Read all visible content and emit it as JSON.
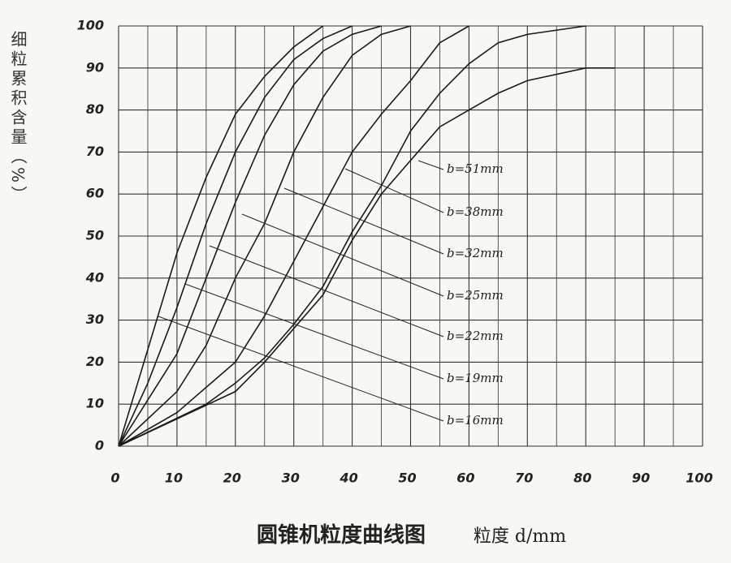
{
  "chart_data": {
    "type": "line",
    "title": "圆锥机粒度曲线图",
    "x_label": "粒度 d/mm",
    "y_label": "细粒累积含量（%）",
    "xlim": [
      0,
      100
    ],
    "xticks": [
      0,
      10,
      20,
      30,
      40,
      50,
      60,
      70,
      80,
      90,
      100
    ],
    "ylim": [
      0,
      100
    ],
    "yticks": [
      0,
      10,
      20,
      30,
      40,
      50,
      60,
      70,
      80,
      90,
      100
    ],
    "grid": true,
    "series": [
      {
        "name": "b=16mm",
        "color": "#1a1a1a",
        "x": [
          0,
          5,
          10,
          15,
          20,
          25,
          30,
          35
        ],
        "values": [
          0,
          23,
          46,
          64,
          79,
          88,
          95,
          100
        ]
      },
      {
        "name": "b=19mm",
        "color": "#1a1a1a",
        "x": [
          0,
          5,
          10,
          15,
          20,
          25,
          30,
          35,
          40
        ],
        "values": [
          0,
          15,
          33,
          53,
          70,
          83,
          92,
          97,
          100
        ]
      },
      {
        "name": "b=22mm",
        "color": "#1a1a1a",
        "x": [
          0,
          10,
          15,
          20,
          25,
          30,
          35,
          40,
          45
        ],
        "values": [
          0,
          22,
          40,
          58,
          74,
          86,
          94,
          98,
          100
        ]
      },
      {
        "name": "b=25mm",
        "color": "#1a1a1a",
        "x": [
          0,
          10,
          15,
          20,
          25,
          30,
          35,
          40,
          45,
          50
        ],
        "values": [
          0,
          13,
          24,
          40,
          53,
          70,
          83,
          93,
          98,
          100
        ]
      },
      {
        "name": "b=32mm",
        "color": "#1a1a1a",
        "x": [
          0,
          10,
          20,
          25,
          30,
          35,
          40,
          45,
          50,
          55,
          60
        ],
        "values": [
          0,
          8,
          20,
          31,
          44,
          57,
          70,
          79,
          87,
          96,
          100
        ]
      },
      {
        "name": "b=38mm",
        "color": "#1a1a1a",
        "x": [
          0,
          15,
          20,
          25,
          30,
          35,
          40,
          45,
          50,
          55,
          60,
          65,
          70,
          80
        ],
        "values": [
          0,
          10,
          15,
          21,
          29,
          38,
          51,
          62,
          75,
          84,
          91,
          96,
          98,
          100
        ]
      },
      {
        "name": "b=51mm",
        "color": "#1a1a1a",
        "x": [
          0,
          20,
          25,
          30,
          35,
          40,
          45,
          50,
          55,
          60,
          65,
          70,
          80,
          85
        ],
        "values": [
          0,
          13,
          20,
          28,
          36,
          49,
          60,
          68,
          76,
          80,
          84,
          87,
          90,
          90
        ]
      }
    ]
  }
}
